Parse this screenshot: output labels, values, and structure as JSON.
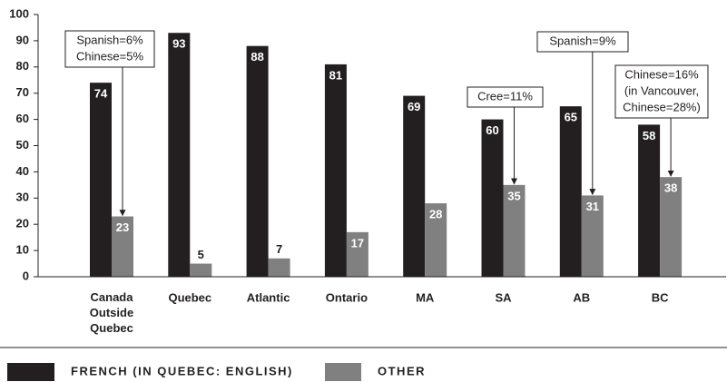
{
  "chart_data": {
    "type": "bar",
    "categories": [
      "Canada Outside Quebec",
      "Quebec",
      "Atlantic",
      "Ontario",
      "MA",
      "SA",
      "AB",
      "BC"
    ],
    "series": [
      {
        "name": "FRENCH (IN QUEBEC: ENGLISH)",
        "color": "#231f20",
        "values": [
          74,
          93,
          88,
          81,
          69,
          60,
          65,
          58
        ]
      },
      {
        "name": "OTHER",
        "color": "#808080",
        "values": [
          23,
          5,
          7,
          17,
          28,
          35,
          31,
          38
        ]
      }
    ],
    "ylim": [
      0,
      100
    ],
    "yticks": [
      0,
      10,
      20,
      30,
      40,
      50,
      60,
      70,
      80,
      90,
      100
    ],
    "grid": false,
    "legend": "bottom",
    "annotations": [
      {
        "lines": [
          "Spanish=6%",
          "Chinese=5%"
        ]
      },
      {
        "lines": [
          "Cree=11%"
        ]
      },
      {
        "lines": [
          "Spanish=9%"
        ]
      },
      {
        "lines": [
          "Chinese=16%",
          "(in Vancouver,",
          "Chinese=28%)"
        ]
      }
    ]
  }
}
